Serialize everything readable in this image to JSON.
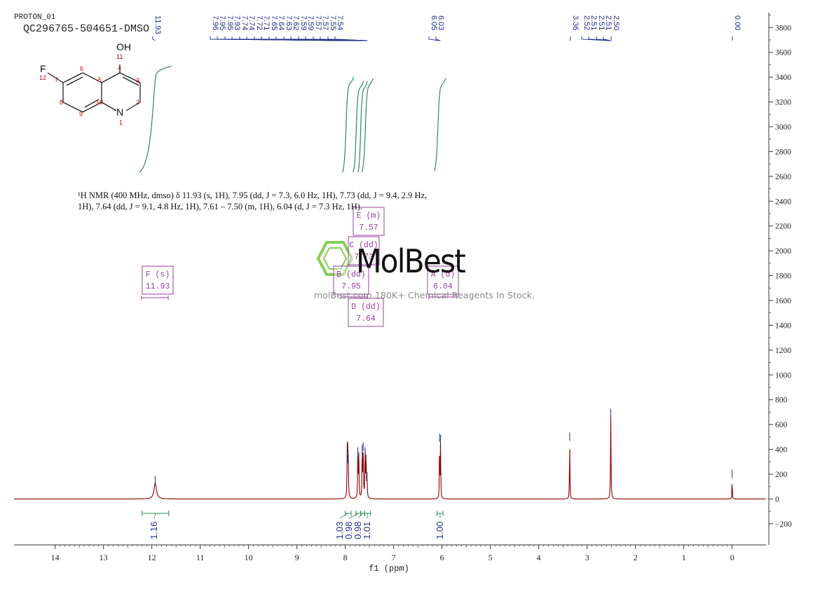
{
  "header": {
    "line1": "PROTON_01",
    "line2": "QC296765-504651-DMSO"
  },
  "nmr_summary": {
    "line1": "¹H NMR (400 MHz, dmso) δ 11.93 (s, 1H), 7.95 (dd, J = 7.3, 6.0 Hz, 1H), 7.73 (dd, J = 9.4, 2.9 Hz,",
    "line2": "1H), 7.64 (dd, J = 9.1, 4.8 Hz, 1H), 7.61 – 7.50 (m, 1H), 6.04 (d, J = 7.3 Hz, 1H)."
  },
  "watermark": {
    "brand": "MolBest",
    "tagline": "molBest.com 180K+ Chemical Reagents In Stock."
  },
  "structure": {
    "atoms": [
      "OH",
      "F",
      "N"
    ],
    "numbers": [
      "1",
      "2",
      "3",
      "4",
      "5",
      "6",
      "7",
      "8",
      "9",
      "10",
      "11",
      "12"
    ]
  },
  "colors": {
    "spectrum": "#8b0000",
    "integral": "#2e8b57",
    "peak_label": "#1f2f8f",
    "multiplet_box": "#9b3fa3",
    "axis": "#333333",
    "atom_number": "#cc0000",
    "watermark_green": "#7ac943"
  },
  "chart_data": {
    "type": "line",
    "title": "",
    "xlabel": "f1 (ppm)",
    "ylabel": "",
    "xlim": [
      14.85,
      -0.7
    ],
    "ylim": [
      -370,
      3920
    ],
    "x_ticks": [
      "14",
      "13",
      "12",
      "11",
      "10",
      "9",
      "8",
      "7",
      "6",
      "5",
      "4",
      "3",
      "2",
      "1",
      "0"
    ],
    "y_ticks": [
      "3800",
      "3600",
      "3400",
      "3200",
      "3000",
      "2800",
      "2600",
      "2400",
      "2200",
      "2000",
      "1800",
      "1600",
      "1400",
      "1200",
      "1000",
      "800",
      "600",
      "400",
      "200",
      "0",
      "-200"
    ],
    "grid": false,
    "peaks": [
      {
        "ppm": 11.93,
        "height": 130,
        "width": 0.03
      },
      {
        "ppm": 7.96,
        "height": 340,
        "width": 0.006
      },
      {
        "ppm": 7.95,
        "height": 300,
        "width": 0.006
      },
      {
        "ppm": 7.94,
        "height": 300,
        "width": 0.006
      },
      {
        "ppm": 7.74,
        "height": 360,
        "width": 0.006
      },
      {
        "ppm": 7.72,
        "height": 320,
        "width": 0.006
      },
      {
        "ppm": 7.65,
        "height": 380,
        "width": 0.006
      },
      {
        "ppm": 7.63,
        "height": 400,
        "width": 0.006
      },
      {
        "ppm": 7.59,
        "height": 360,
        "width": 0.006
      },
      {
        "ppm": 7.57,
        "height": 300,
        "width": 0.006
      },
      {
        "ppm": 7.55,
        "height": 160,
        "width": 0.006
      },
      {
        "ppm": 6.05,
        "height": 470,
        "width": 0.005
      },
      {
        "ppm": 6.03,
        "height": 460,
        "width": 0.005
      },
      {
        "ppm": 3.36,
        "height": 480,
        "width": 0.005
      },
      {
        "ppm": 2.51,
        "height": 670,
        "width": 0.006
      },
      {
        "ppm": 0.0,
        "height": 180,
        "width": 0.004
      }
    ],
    "peak_labels": [
      {
        "text": "11.93"
      },
      {
        "text": "7.96"
      },
      {
        "text": "7.95"
      },
      {
        "text": "7.95"
      },
      {
        "text": "7.93"
      },
      {
        "text": "7.74"
      },
      {
        "text": "7.74"
      },
      {
        "text": "7.72"
      },
      {
        "text": "7.71"
      },
      {
        "text": "7.65"
      },
      {
        "text": "7.64"
      },
      {
        "text": "7.63"
      },
      {
        "text": "7.62"
      },
      {
        "text": "7.59"
      },
      {
        "text": "7.59"
      },
      {
        "text": "7.57"
      },
      {
        "text": "7.57"
      },
      {
        "text": "7.55"
      },
      {
        "text": "7.54"
      },
      {
        "text": "6.05"
      },
      {
        "text": "6.03"
      },
      {
        "text": "3.36"
      },
      {
        "text": "2.52"
      },
      {
        "text": "2.51"
      },
      {
        "text": "2.51"
      },
      {
        "text": "2.51"
      },
      {
        "text": "2.50"
      },
      {
        "text": "0.00"
      }
    ],
    "integrals": [
      {
        "from": 12.2,
        "to": 11.65,
        "value": "1.16"
      },
      {
        "from": 8.0,
        "to": 7.88,
        "value": "1.03"
      },
      {
        "from": 7.78,
        "to": 7.68,
        "value": "0.98"
      },
      {
        "from": 7.68,
        "to": 7.6,
        "value": "0.98"
      },
      {
        "from": 7.6,
        "to": 7.48,
        "value": "1.01"
      },
      {
        "from": 6.1,
        "to": 5.98,
        "value": "1.00"
      }
    ],
    "multiplets": [
      {
        "label": "F (s)",
        "shift": "11.93"
      },
      {
        "label": "E (m)",
        "shift": "7.57"
      },
      {
        "label": "C (dd)",
        "shift": "7.73"
      },
      {
        "label": "B (dd)",
        "shift": "7.95"
      },
      {
        "label": "A (d)",
        "shift": "6.04"
      },
      {
        "label": "D (dd)",
        "shift": "7.64"
      }
    ]
  }
}
